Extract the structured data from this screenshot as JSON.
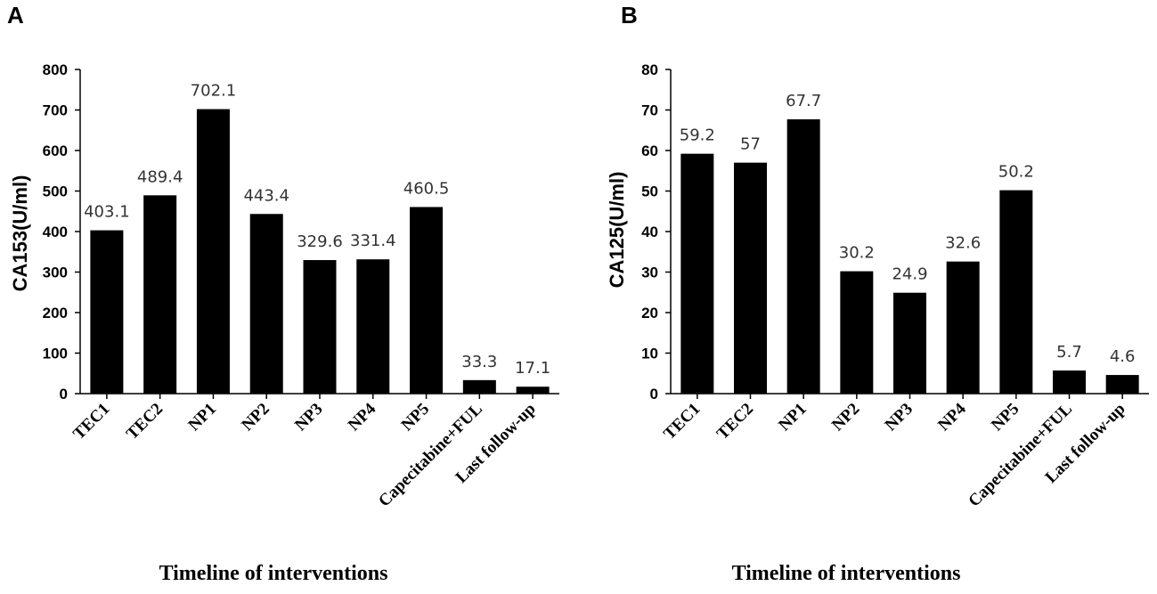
{
  "colors": {
    "bar": "#000000",
    "axis": "#000000",
    "label": "#333333"
  },
  "chart_data": [
    {
      "panel": "A",
      "type": "bar",
      "categories": [
        "TEC1",
        "TEC2",
        "NP1",
        "NP2",
        "NP3",
        "NP4",
        "NP5",
        "Capecitabine+FUL",
        "Last follow-up"
      ],
      "values": [
        403.1,
        489.4,
        702.1,
        443.4,
        329.6,
        331.4,
        460.5,
        33.3,
        17.1
      ],
      "ylabel": "CA153(U/ml)",
      "xlabel": "Timeline of interventions",
      "ylim": [
        0,
        800
      ],
      "yticks": [
        0,
        100,
        200,
        300,
        400,
        500,
        600,
        700,
        800
      ]
    },
    {
      "panel": "B",
      "type": "bar",
      "categories": [
        "TEC1",
        "TEC2",
        "NP1",
        "NP2",
        "NP3",
        "NP4",
        "NP5",
        "Capecitabine+FUL",
        "Last follow-up"
      ],
      "values": [
        59.2,
        57,
        67.7,
        30.2,
        24.9,
        32.6,
        50.2,
        5.7,
        4.6
      ],
      "ylabel": "CA125(U/ml)",
      "xlabel": "Timeline of interventions",
      "ylim": [
        0,
        80
      ],
      "yticks": [
        0,
        10,
        20,
        30,
        40,
        50,
        60,
        70,
        80
      ]
    }
  ]
}
